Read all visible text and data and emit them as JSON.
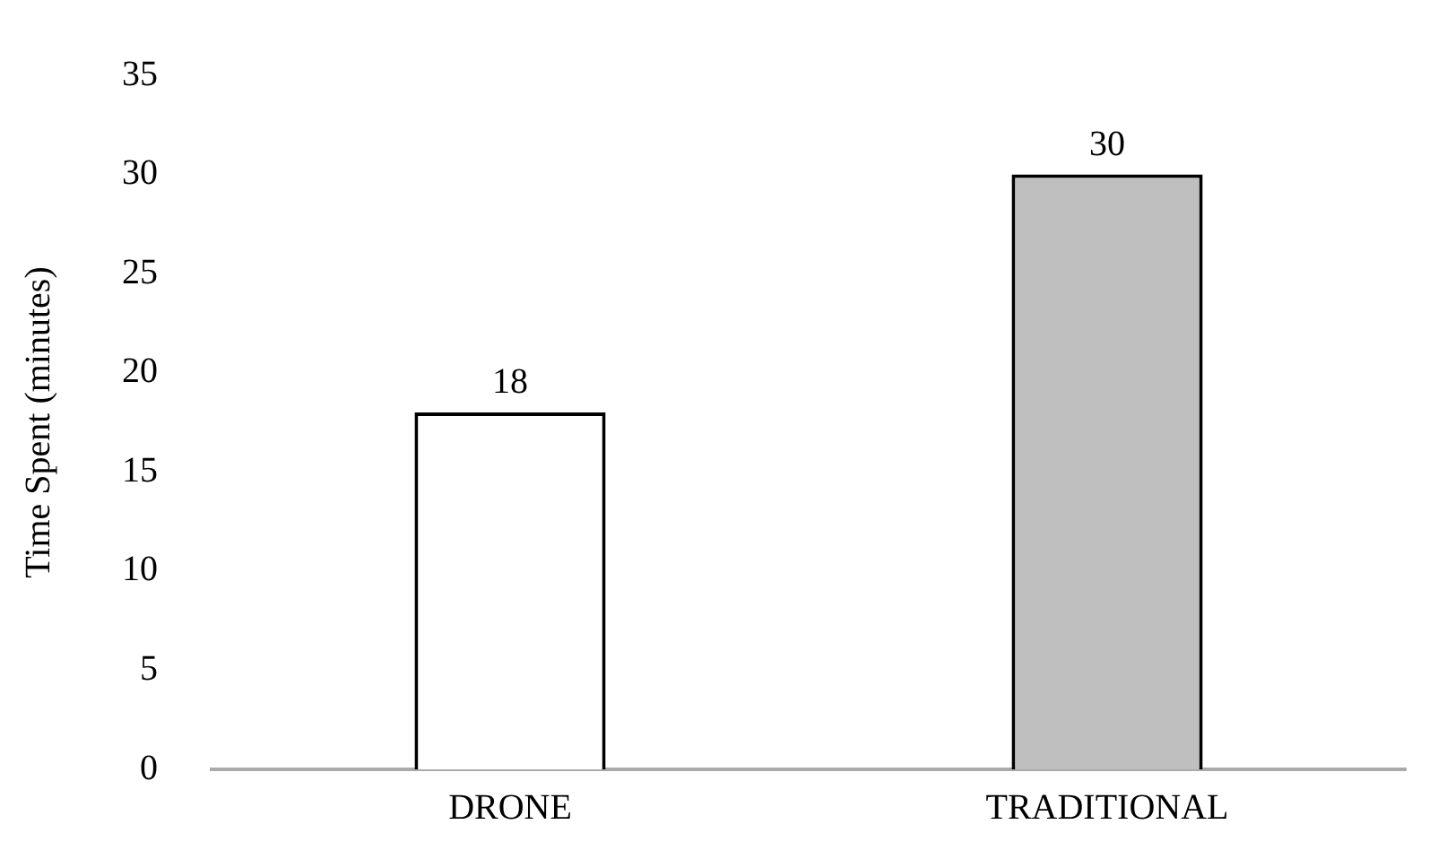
{
  "chart_data": {
    "type": "bar",
    "ylabel": "Time Spent (minutes)",
    "categories": [
      "DRONE",
      "TRADITIONAL"
    ],
    "values": [
      18,
      30
    ],
    "colors": [
      "#ffffff",
      "#bfbfbf"
    ],
    "ylim": [
      0,
      35
    ],
    "yticks": [
      0,
      5,
      10,
      15,
      20,
      25,
      30,
      35
    ],
    "grid": false,
    "legend": false,
    "data_labels": true
  }
}
